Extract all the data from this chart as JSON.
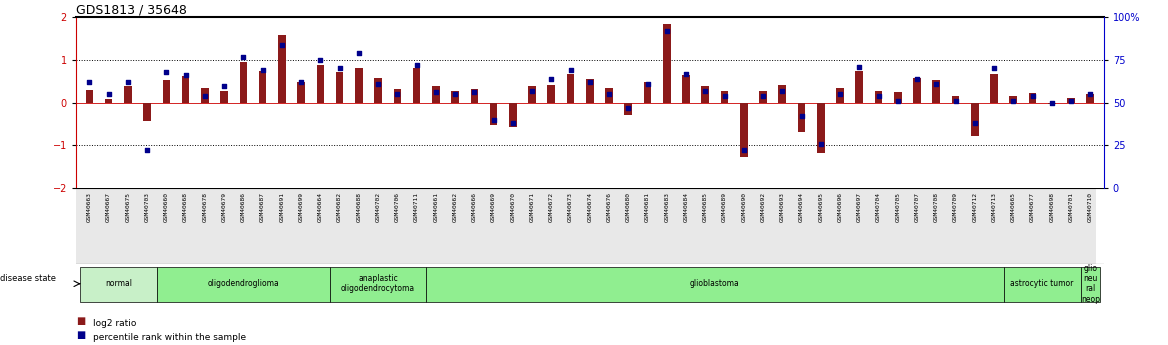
{
  "title": "GDS1813 / 35648",
  "samples": [
    "GSM40663",
    "GSM40667",
    "GSM40675",
    "GSM40703",
    "GSM40660",
    "GSM40668",
    "GSM40678",
    "GSM40679",
    "GSM40686",
    "GSM40687",
    "GSM40691",
    "GSM40699",
    "GSM40664",
    "GSM40682",
    "GSM40688",
    "GSM40702",
    "GSM40706",
    "GSM40711",
    "GSM40661",
    "GSM40662",
    "GSM40666",
    "GSM40669",
    "GSM40670",
    "GSM40671",
    "GSM40672",
    "GSM40673",
    "GSM40674",
    "GSM40676",
    "GSM40680",
    "GSM40681",
    "GSM40683",
    "GSM40684",
    "GSM40685",
    "GSM40689",
    "GSM40690",
    "GSM40692",
    "GSM40693",
    "GSM40694",
    "GSM40695",
    "GSM40696",
    "GSM40697",
    "GSM40704",
    "GSM40705",
    "GSM40707",
    "GSM40708",
    "GSM40709",
    "GSM40712",
    "GSM40713",
    "GSM40665",
    "GSM40677",
    "GSM40698",
    "GSM40701",
    "GSM40710"
  ],
  "log2_ratio": [
    0.3,
    0.08,
    0.38,
    -0.42,
    0.52,
    0.62,
    0.35,
    0.28,
    0.95,
    0.75,
    1.58,
    0.48,
    0.88,
    0.72,
    0.82,
    0.58,
    0.32,
    0.8,
    0.38,
    0.28,
    0.32,
    -0.52,
    -0.58,
    0.4,
    0.42,
    0.68,
    0.55,
    0.35,
    -0.28,
    0.48,
    1.85,
    0.65,
    0.4,
    0.28,
    -1.28,
    0.28,
    0.42,
    -0.68,
    -1.18,
    0.35,
    0.75,
    0.28,
    0.25,
    0.58,
    0.52,
    0.15,
    -0.78,
    0.68,
    0.15,
    0.22,
    -0.04,
    0.12,
    0.2
  ],
  "percentile": [
    62,
    55,
    62,
    22,
    68,
    66,
    54,
    60,
    77,
    69,
    84,
    62,
    75,
    70,
    79,
    61,
    55,
    72,
    56,
    55,
    56,
    40,
    38,
    57,
    64,
    69,
    62,
    55,
    47,
    61,
    92,
    67,
    57,
    54,
    22,
    54,
    57,
    42,
    26,
    55,
    71,
    54,
    51,
    64,
    61,
    51,
    38,
    70,
    51,
    54,
    50,
    51,
    55
  ],
  "disease_groups": [
    {
      "label": "normal",
      "start": 0,
      "end": 4,
      "color": "#c8f0c8"
    },
    {
      "label": "oligodendroglioma",
      "start": 4,
      "end": 13,
      "color": "#90ee90"
    },
    {
      "label": "anaplastic\noligodendrocytoma",
      "start": 13,
      "end": 18,
      "color": "#90ee90"
    },
    {
      "label": "glioblastoma",
      "start": 18,
      "end": 48,
      "color": "#90ee90"
    },
    {
      "label": "astrocytic tumor",
      "start": 48,
      "end": 52,
      "color": "#90ee90"
    },
    {
      "label": "glio\nneu\nral\nneop",
      "start": 52,
      "end": 53,
      "color": "#90ee90"
    }
  ],
  "bar_color": "#8B1A1A",
  "dot_color": "#00008B",
  "ylim": [
    -2.0,
    2.0
  ],
  "yticks_left": [
    -2,
    -1,
    0,
    1,
    2
  ],
  "hlines_dotted": [
    -1.0,
    1.0
  ],
  "hline_zero": 0.0,
  "bg_color": "#ffffff",
  "left_axis_color": "#cc0000",
  "right_axis_color": "#0000cc",
  "legend_items": [
    {
      "color": "#8B1A1A",
      "label": "log2 ratio"
    },
    {
      "color": "#00008B",
      "label": "percentile rank within the sample"
    }
  ]
}
